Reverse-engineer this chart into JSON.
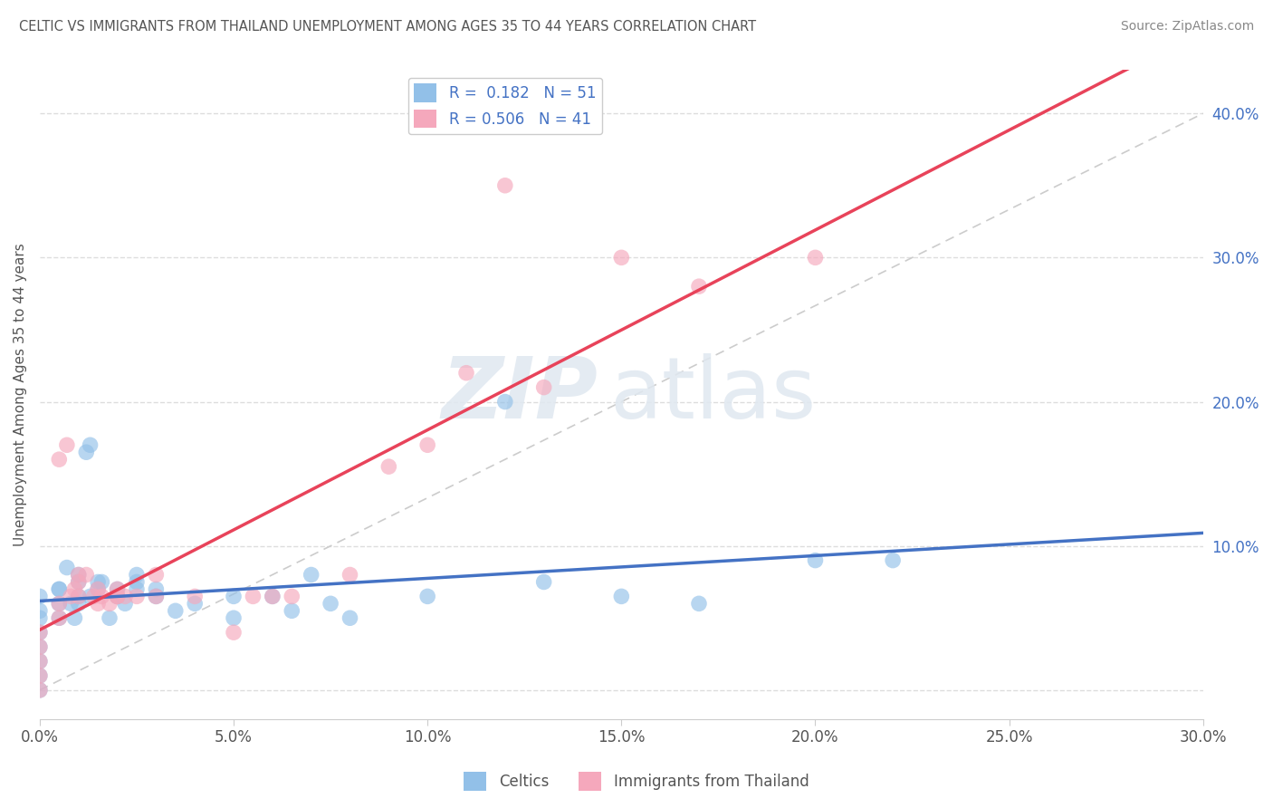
{
  "title": "CELTIC VS IMMIGRANTS FROM THAILAND UNEMPLOYMENT AMONG AGES 35 TO 44 YEARS CORRELATION CHART",
  "source": "Source: ZipAtlas.com",
  "ylabel": "Unemployment Among Ages 35 to 44 years",
  "xlim": [
    0.0,
    0.3
  ],
  "ylim": [
    -0.02,
    0.43
  ],
  "xticks": [
    0.0,
    0.05,
    0.1,
    0.15,
    0.2,
    0.25,
    0.3
  ],
  "yticks": [
    0.0,
    0.1,
    0.2,
    0.3,
    0.4
  ],
  "celtics_color": "#92C0E8",
  "thailand_color": "#F5A8BC",
  "celtics_line_color": "#4472C4",
  "thailand_line_color": "#E8435A",
  "celtics_R": 0.182,
  "celtics_N": 51,
  "thailand_R": 0.506,
  "thailand_N": 41,
  "celtics_x": [
    0.0,
    0.0,
    0.0,
    0.0,
    0.0,
    0.0,
    0.0,
    0.0,
    0.005,
    0.005,
    0.005,
    0.01,
    0.01,
    0.01,
    0.013,
    0.015,
    0.015,
    0.02,
    0.02,
    0.025,
    0.025,
    0.025,
    0.03,
    0.03,
    0.035,
    0.04,
    0.05,
    0.05,
    0.06,
    0.065,
    0.07,
    0.075,
    0.08,
    0.1,
    0.12,
    0.13,
    0.15,
    0.17,
    0.2,
    0.22,
    0.005,
    0.007,
    0.008,
    0.009,
    0.01,
    0.012,
    0.013,
    0.016,
    0.018,
    0.02,
    0.022
  ],
  "celtics_y": [
    0.0,
    0.01,
    0.02,
    0.03,
    0.04,
    0.05,
    0.055,
    0.065,
    0.05,
    0.06,
    0.07,
    0.06,
    0.065,
    0.075,
    0.065,
    0.07,
    0.075,
    0.065,
    0.07,
    0.07,
    0.075,
    0.08,
    0.065,
    0.07,
    0.055,
    0.06,
    0.05,
    0.065,
    0.065,
    0.055,
    0.08,
    0.06,
    0.05,
    0.065,
    0.2,
    0.075,
    0.065,
    0.06,
    0.09,
    0.09,
    0.07,
    0.085,
    0.06,
    0.05,
    0.08,
    0.165,
    0.17,
    0.075,
    0.05,
    0.065,
    0.06
  ],
  "thailand_x": [
    0.0,
    0.0,
    0.0,
    0.0,
    0.0,
    0.005,
    0.005,
    0.01,
    0.01,
    0.015,
    0.015,
    0.02,
    0.02,
    0.025,
    0.03,
    0.03,
    0.04,
    0.05,
    0.055,
    0.06,
    0.065,
    0.08,
    0.09,
    0.1,
    0.11,
    0.12,
    0.13,
    0.15,
    0.17,
    0.2,
    0.005,
    0.007,
    0.008,
    0.009,
    0.01,
    0.012,
    0.014,
    0.016,
    0.018,
    0.02,
    0.022
  ],
  "thailand_y": [
    0.0,
    0.01,
    0.02,
    0.03,
    0.04,
    0.05,
    0.06,
    0.065,
    0.08,
    0.06,
    0.07,
    0.065,
    0.07,
    0.065,
    0.065,
    0.08,
    0.065,
    0.04,
    0.065,
    0.065,
    0.065,
    0.08,
    0.155,
    0.17,
    0.22,
    0.35,
    0.21,
    0.3,
    0.28,
    0.3,
    0.16,
    0.17,
    0.065,
    0.07,
    0.075,
    0.08,
    0.065,
    0.065,
    0.06,
    0.065,
    0.065
  ],
  "watermark_zip": "ZIP",
  "watermark_atlas": "atlas",
  "background_color": "#FFFFFF",
  "grid_color": "#DDDDDD",
  "diagonal_color": "#CCCCCC"
}
